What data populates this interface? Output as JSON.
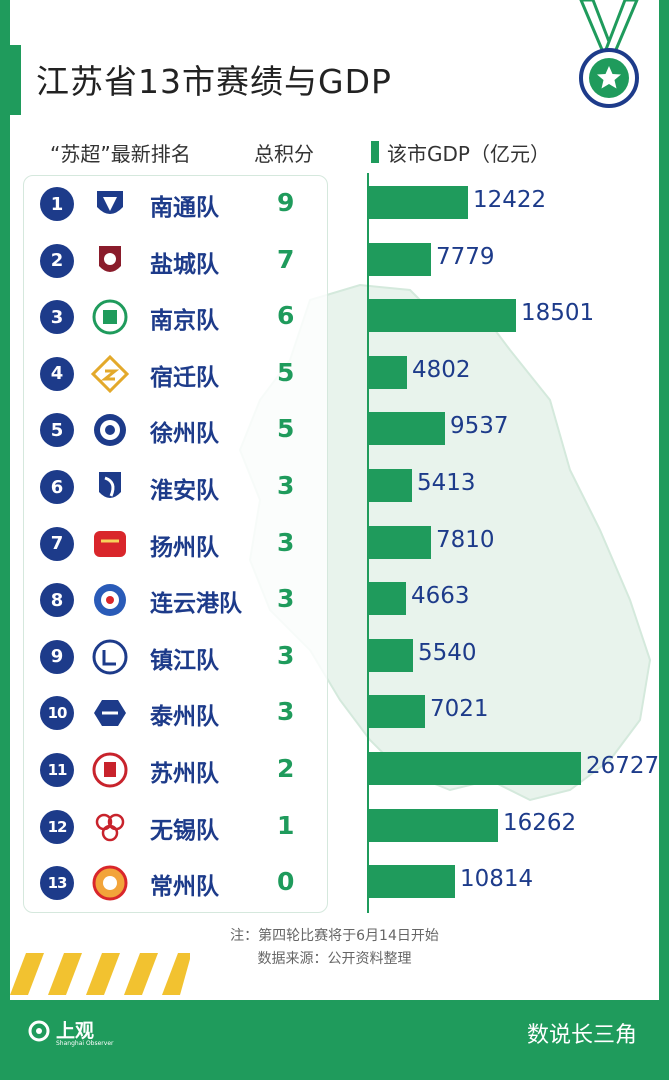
{
  "title": "江苏省13市赛绩与GDP",
  "headers": {
    "ranking": "“苏超”最新排名",
    "points": "总积分",
    "gdp": "该市GDP（亿元）"
  },
  "chart_data": {
    "type": "bar",
    "orientation": "horizontal",
    "title": "江苏省13市赛绩与GDP",
    "categories": [
      "南通队",
      "盐城队",
      "南京队",
      "宿迁队",
      "徐州队",
      "淮安队",
      "扬州队",
      "连云港队",
      "镇江队",
      "泰州队",
      "苏州队",
      "无锡队",
      "常州队"
    ],
    "ranks": [
      "1",
      "2",
      "3",
      "4",
      "5",
      "6",
      "7",
      "8",
      "9",
      "10",
      "11",
      "12",
      "13"
    ],
    "points": [
      9,
      7,
      6,
      5,
      5,
      3,
      3,
      3,
      3,
      3,
      2,
      1,
      0
    ],
    "series": [
      {
        "name": "该市GDP（亿元）",
        "values": [
          12422,
          7779,
          18501,
          4802,
          9537,
          5413,
          7810,
          4663,
          5540,
          7021,
          26727,
          16262,
          10814
        ]
      }
    ],
    "xlim": [
      0,
      26727
    ],
    "grid": false
  },
  "notes": {
    "note1": "注：第四轮比赛将于6月14日开始",
    "note2": "数据来源：公开资料整理"
  },
  "footer": {
    "brand": "上观",
    "brand_sub": "Shanghai Observer",
    "column": "数说长三角"
  },
  "colors": {
    "green": "#1f9b5c",
    "navy": "#1d3b8a",
    "stripe": "#f2c230"
  },
  "icons": {
    "medal": "medal-star-icon",
    "team_logo": "team-badge-icon"
  }
}
